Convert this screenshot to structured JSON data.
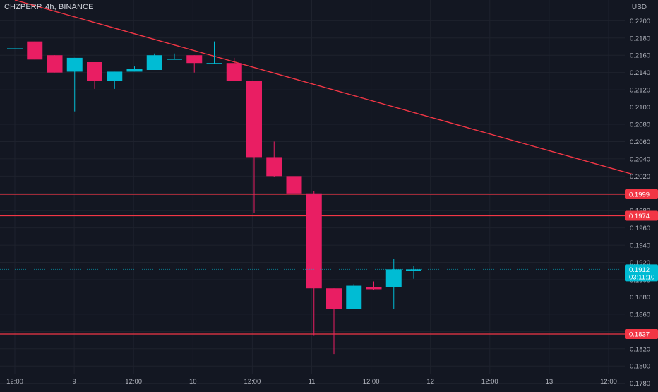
{
  "header": {
    "symbol_line": "CHZPERP, 4h, BINANCE",
    "currency": "USD"
  },
  "colors": {
    "background": "#131722",
    "grid": "#1e222d",
    "up": "#00bcd4",
    "down": "#e91e63",
    "line": "#f23645",
    "axis_text": "#b2b5be",
    "current_price": "#00bcd4"
  },
  "chart_data": {
    "type": "candlestick",
    "yaxis": {
      "ylim": [
        0.1774,
        0.2224
      ],
      "ticks": [
        "0.2200",
        "0.2180",
        "0.2160",
        "0.2140",
        "0.2120",
        "0.2100",
        "0.2080",
        "0.2060",
        "0.2040",
        "0.2020",
        "0.2000",
        "0.1980",
        "0.1960",
        "0.1940",
        "0.1920",
        "0.1900",
        "0.1880",
        "0.1860",
        "0.1840",
        "0.1820",
        "0.1800",
        "0.1780"
      ]
    },
    "xaxis": {
      "ticks": [
        "12:00",
        "9",
        "12:00",
        "10",
        "12:00",
        "11",
        "12:00",
        "12",
        "12:00",
        "13",
        "12:00"
      ]
    },
    "candles": [
      {
        "o": 0.2168,
        "h": 0.2168,
        "l": 0.2168,
        "c": 0.2168
      },
      {
        "o": 0.2176,
        "h": 0.2176,
        "l": 0.2155,
        "c": 0.2155
      },
      {
        "o": 0.216,
        "h": 0.216,
        "l": 0.214,
        "c": 0.214
      },
      {
        "o": 0.2141,
        "h": 0.2157,
        "l": 0.2095,
        "c": 0.2157
      },
      {
        "o": 0.2152,
        "h": 0.2152,
        "l": 0.2121,
        "c": 0.213
      },
      {
        "o": 0.213,
        "h": 0.2141,
        "l": 0.2121,
        "c": 0.2141
      },
      {
        "o": 0.2141,
        "h": 0.2147,
        "l": 0.2141,
        "c": 0.2144
      },
      {
        "o": 0.2143,
        "h": 0.2162,
        "l": 0.2143,
        "c": 0.216
      },
      {
        "o": 0.2156,
        "h": 0.2162,
        "l": 0.2156,
        "c": 0.2156
      },
      {
        "o": 0.216,
        "h": 0.216,
        "l": 0.214,
        "c": 0.2151
      },
      {
        "o": 0.2151,
        "h": 0.2176,
        "l": 0.215,
        "c": 0.2151
      },
      {
        "o": 0.2151,
        "h": 0.2157,
        "l": 0.213,
        "c": 0.213
      },
      {
        "o": 0.213,
        "h": 0.213,
        "l": 0.1977,
        "c": 0.2042
      },
      {
        "o": 0.2042,
        "h": 0.206,
        "l": 0.2019,
        "c": 0.202
      },
      {
        "o": 0.202,
        "h": 0.2021,
        "l": 0.1951,
        "c": 0.2
      },
      {
        "o": 0.2,
        "h": 0.2003,
        "l": 0.1835,
        "c": 0.189
      },
      {
        "o": 0.189,
        "h": 0.189,
        "l": 0.1814,
        "c": 0.1866
      },
      {
        "o": 0.1866,
        "h": 0.1895,
        "l": 0.1866,
        "c": 0.1893
      },
      {
        "o": 0.1891,
        "h": 0.1898,
        "l": 0.1888,
        "c": 0.1889
      },
      {
        "o": 0.1891,
        "h": 0.1924,
        "l": 0.1866,
        "c": 0.1912
      },
      {
        "o": 0.191,
        "h": 0.1916,
        "l": 0.1901,
        "c": 0.1912
      }
    ],
    "horizontal_lines": [
      {
        "value": 0.1999,
        "label": "0.1999"
      },
      {
        "value": 0.1974,
        "label": "0.1974"
      },
      {
        "value": 0.1837,
        "label": "0.1837"
      }
    ],
    "trendline": {
      "start": {
        "candle": 0,
        "value": 0.2224
      },
      "end": {
        "candle": 31,
        "value": 0.2022
      }
    },
    "current_price": {
      "value": 0.1912,
      "label": "0.1912",
      "countdown": "03:11:10"
    }
  }
}
